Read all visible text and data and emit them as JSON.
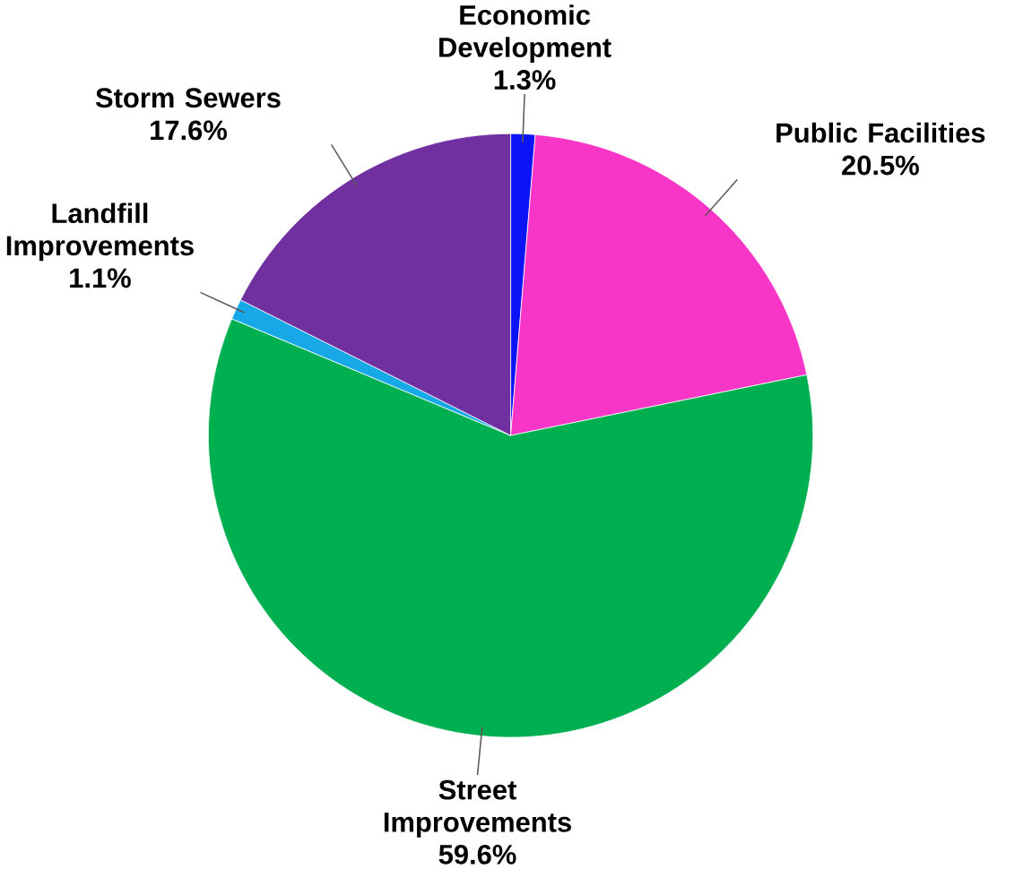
{
  "chart_data": {
    "type": "pie",
    "categories": [
      "Economic Development",
      "Public Facilities",
      "Street Improvements",
      "Landfill Improvements",
      "Storm Sewers"
    ],
    "values": [
      1.3,
      20.5,
      59.6,
      1.1,
      17.6
    ],
    "colors": [
      "#0a14f5",
      "#f736c8",
      "#00b050",
      "#17a8e8",
      "#7030a0"
    ],
    "value_labels": [
      "1.3%",
      "20.5%",
      "59.6%",
      "1.1%",
      "17.6%"
    ]
  }
}
